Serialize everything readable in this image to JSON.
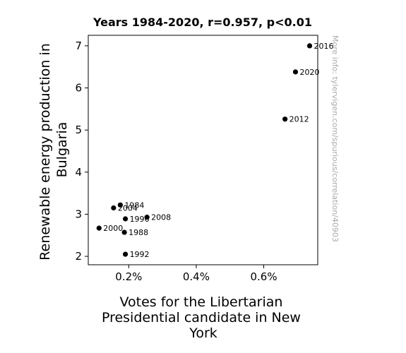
{
  "chart_data": {
    "type": "scatter",
    "title": "Years 1984-2020, r=0.957, p<0.01",
    "xlabel_lines": [
      "Votes for the Libertarian",
      "Presidential candidate in New",
      "York"
    ],
    "ylabel_lines": [
      "Renewable energy production in",
      "Bulgaria"
    ],
    "xlim": [
      0.08,
      0.76
    ],
    "ylim": [
      1.8,
      7.25
    ],
    "x_ticks": [
      {
        "value": 0.2,
        "label": "0.2%"
      },
      {
        "value": 0.4,
        "label": "0.4%"
      },
      {
        "value": 0.6,
        "label": "0.6%"
      }
    ],
    "y_ticks": [
      {
        "value": 2,
        "label": "2"
      },
      {
        "value": 3,
        "label": "3"
      },
      {
        "value": 4,
        "label": "4"
      },
      {
        "value": 5,
        "label": "5"
      },
      {
        "value": 6,
        "label": "6"
      },
      {
        "value": 7,
        "label": "7"
      }
    ],
    "points": [
      {
        "label": "1984",
        "x": 0.175,
        "y": 3.22
      },
      {
        "label": "1988",
        "x": 0.187,
        "y": 2.57
      },
      {
        "label": "1992",
        "x": 0.19,
        "y": 2.05
      },
      {
        "label": "1996",
        "x": 0.19,
        "y": 2.89
      },
      {
        "label": "2000",
        "x": 0.112,
        "y": 2.67
      },
      {
        "label": "2004",
        "x": 0.155,
        "y": 3.15
      },
      {
        "label": "2008",
        "x": 0.254,
        "y": 2.93
      },
      {
        "label": "2012",
        "x": 0.663,
        "y": 5.26
      },
      {
        "label": "2016",
        "x": 0.736,
        "y": 7.0
      },
      {
        "label": "2020",
        "x": 0.694,
        "y": 6.38
      }
    ],
    "grid": false,
    "marker_color": "#000000",
    "watermark": "More info: tylervigen.com/spurious/correlation/40903"
  }
}
